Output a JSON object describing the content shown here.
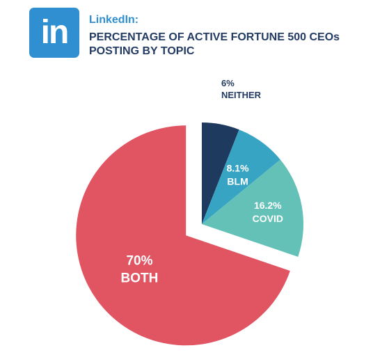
{
  "colors": {
    "brand": "#2f8fd0",
    "title": "#233b63",
    "slice_label_light": "#ffffff",
    "slice_label_dark": "#233b63"
  },
  "header": {
    "logo_icon": "linkedin-logo-icon",
    "logo_text": "in",
    "brand": "LinkedIn:",
    "title": "PERCENTAGE OF ACTIVE FORTUNE 500 CEOs POSTING BY TOPIC"
  },
  "chart_data": {
    "type": "pie",
    "title": "PERCENTAGE OF ACTIVE FORTUNE 500 CEOs POSTING BY TOPIC",
    "slices": [
      {
        "name": "NEITHER",
        "value": 6,
        "value_label": "6%",
        "color": "#1f3a5f",
        "label_placement": "outside"
      },
      {
        "name": "BLM",
        "value": 8.1,
        "value_label": "8.1%",
        "color": "#38a4c4",
        "label_placement": "inside"
      },
      {
        "name": "COVID",
        "value": 16.2,
        "value_label": "16.2%",
        "color": "#64c1b7",
        "label_placement": "inside"
      },
      {
        "name": "BOTH",
        "value": 70,
        "value_label": "70%",
        "color": "#e15563",
        "label_placement": "inside",
        "exploded": true
      }
    ]
  }
}
